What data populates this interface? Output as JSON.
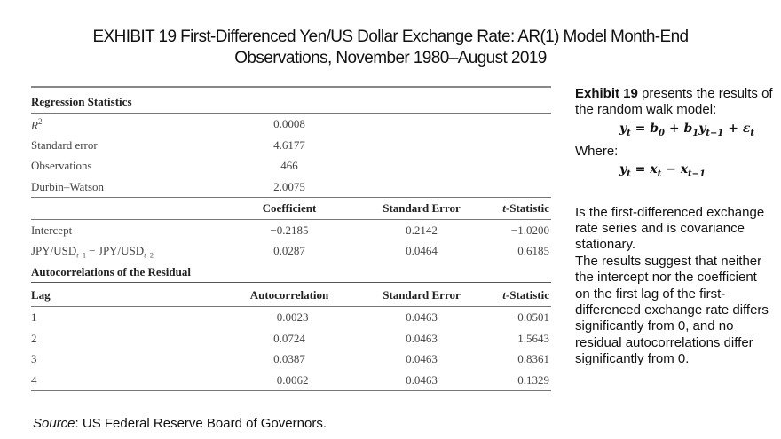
{
  "title": {
    "line1": "EXHIBIT 19 First-Differenced Yen/US Dollar Exchange Rate: AR(1) Model Month-End",
    "line2": "Observations, November 1980–August 2019"
  },
  "regression": {
    "header": "Regression Statistics",
    "rows": [
      {
        "label": "R²",
        "value": "0.0008"
      },
      {
        "label": "Standard error",
        "value": "4.6177"
      },
      {
        "label": "Observations",
        "value": "466"
      },
      {
        "label": "Durbin–Watson",
        "value": "2.0075"
      }
    ]
  },
  "coefficients": {
    "columns": [
      "Coefficient",
      "Standard Error",
      "t-Statistic"
    ],
    "rows": [
      {
        "label": "Intercept",
        "coef": "−0.2185",
        "se": "0.2142",
        "t": "−1.0200"
      },
      {
        "label": "JPY/USDt−1 − JPY/USDt−2",
        "coef": "0.0287",
        "se": "0.0464",
        "t": "0.6185"
      }
    ]
  },
  "autocorrelations": {
    "header": "Autocorrelations of the Residual",
    "columns": [
      "Lag",
      "Autocorrelation",
      "Standard Error",
      "t-Statistic"
    ],
    "rows": [
      {
        "lag": "1",
        "ac": "−0.0023",
        "se": "0.0463",
        "t": "−0.0501"
      },
      {
        "lag": "2",
        "ac": "0.0724",
        "se": "0.0463",
        "t": "1.5643"
      },
      {
        "lag": "3",
        "ac": "0.0387",
        "se": "0.0463",
        "t": "0.8361"
      },
      {
        "lag": "4",
        "ac": "−0.0062",
        "se": "0.0463",
        "t": "−0.1329"
      }
    ]
  },
  "source": {
    "label": "Source",
    "text": ": US Federal Reserve Board of Governors."
  },
  "sidebar": {
    "intro_bold": "Exhibit 19",
    "intro_rest": " presents the results of the random walk model:",
    "where": "Where:",
    "description": "Is the first-differenced exchange rate series and is covariance stationary.",
    "conclusion": "The results suggest that neither the intercept nor the coefficient on the first lag of the first-differenced exchange rate differs significantly from 0, and no residual autocorrelations differ significantly from 0."
  }
}
